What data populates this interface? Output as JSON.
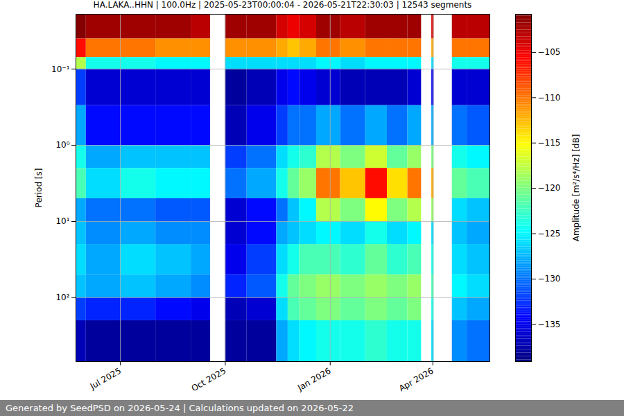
{
  "chart_data": {
    "type": "heatmap",
    "title": "HA.LAKA..HHN | 100.0Hz | 2025-05-23T00:00:04 - 2026-05-21T22:30:03 | 12543 segments",
    "footer": "Generated by SeedPSD on 2026-05-24 | Calculations updated on 2026-05-22",
    "y_label": "Period [s]",
    "colorbar_label": "Amplitude [m²/s⁴/Hz] [dB]",
    "x_bins": [
      "2025-05-23",
      "2025-06-01",
      "2025-07-01",
      "2025-08-01",
      "2025-09-01",
      "2025-09-18",
      "2025-10-01",
      "2025-10-20",
      "2025-11-15",
      "2025-11-25",
      "2025-12-05",
      "2025-12-20",
      "2026-01-10",
      "2026-02-01",
      "2026-02-20",
      "2026-03-10",
      "2026-03-22",
      "2026-03-31",
      "2026-04-02",
      "2026-04-18",
      "2026-05-01",
      "2026-05-21"
    ],
    "y_bins": [
      0.019,
      0.04,
      0.07,
      0.1,
      0.3,
      1,
      2,
      5,
      10,
      20,
      50,
      100,
      200,
      690
    ],
    "values": [
      [
        -101,
        -106,
        -118,
        -132,
        -128,
        -124,
        -122,
        -128,
        -127,
        -126,
        -127,
        -132,
        -137
      ],
      [
        -102,
        -110,
        -124,
        -136,
        -134,
        -128,
        -126,
        -130,
        -129,
        -128,
        -128,
        -133,
        -138
      ],
      [
        -102,
        -110,
        -124,
        -136,
        -134,
        -127,
        -124,
        -130,
        -128,
        -126,
        -127,
        -133,
        -138
      ],
      [
        -102,
        -111,
        -125,
        -136,
        -134,
        -127,
        -125,
        -131,
        -129,
        -127,
        -128,
        -134,
        -138
      ],
      [
        -103,
        -111,
        -125,
        -136,
        -134,
        -127,
        -125,
        -131,
        -129,
        -128,
        -129,
        -135,
        -138
      ],
      null,
      [
        -102,
        -111,
        -126,
        -138,
        -137,
        -132,
        -130,
        -136,
        -136,
        -135,
        -133,
        -137,
        -138
      ],
      [
        -102,
        -111,
        -126,
        -137,
        -135,
        -130,
        -128,
        -134,
        -134,
        -132,
        -131,
        -136,
        -138
      ],
      [
        -104,
        -112,
        -126,
        -135,
        -132,
        -126,
        -124,
        -130,
        -128,
        -126,
        -124,
        -126,
        -128
      ],
      [
        -105,
        -113,
        -126,
        -134,
        -130,
        -124,
        -121,
        -127,
        -127,
        -124,
        -121,
        -122,
        -126
      ],
      [
        -104,
        -112,
        -126,
        -135,
        -130,
        -123,
        -119,
        -125,
        -126,
        -122,
        -120,
        -121,
        -125
      ],
      [
        -102,
        -110,
        -125,
        -136,
        -128,
        -118,
        -110,
        -118,
        -125,
        -122,
        -119,
        -120,
        -124
      ],
      [
        -103,
        -111,
        -126,
        -137,
        -130,
        -120,
        -113,
        -120,
        -126,
        -123,
        -120,
        -121,
        -124
      ],
      [
        -102,
        -110,
        -125,
        -137,
        -128,
        -117,
        -106,
        -115,
        -124,
        -121,
        -119,
        -120,
        -123
      ],
      [
        -102,
        -110,
        -125,
        -137,
        -130,
        -121,
        -114,
        -120,
        -126,
        -123,
        -120,
        -121,
        -124
      ],
      [
        -102,
        -110,
        -125,
        -136,
        -128,
        -119,
        -110,
        -118,
        -125,
        -122,
        -119,
        -120,
        -124
      ],
      null,
      [
        -104,
        -112,
        -126,
        -135,
        -128,
        -120,
        -112,
        -119,
        -126,
        -124,
        -122,
        -124,
        -126
      ],
      null,
      [
        -103,
        -110,
        -124,
        -136,
        -130,
        -124,
        -121,
        -126,
        -127,
        -126,
        -125,
        -127,
        -129
      ],
      [
        -103,
        -110,
        -124,
        -136,
        -131,
        -125,
        -122,
        -127,
        -128,
        -127,
        -126,
        -128,
        -130
      ]
    ],
    "xlim": [
      "2025-05-23",
      "2026-05-21"
    ],
    "xticks": [
      {
        "value": "2025-07-01",
        "label": "Jul 2025"
      },
      {
        "value": "2025-10-01",
        "label": "Oct 2025"
      },
      {
        "value": "2026-01-01",
        "label": "Jan 2026"
      },
      {
        "value": "2026-04-01",
        "label": "Apr 2026"
      }
    ],
    "ylim": [
      0.019,
      690
    ],
    "yticks": [
      {
        "value": 0.1,
        "label": "10⁻¹"
      },
      {
        "value": 1,
        "label": "10⁰"
      },
      {
        "value": 10,
        "label": "10¹"
      },
      {
        "value": 100,
        "label": "10²"
      }
    ],
    "log": "y",
    "grid": true,
    "colorbar_lim": [
      -139.1,
      -100.8
    ],
    "colorbar_ticks": [
      -135,
      -130,
      -125,
      -120,
      -115,
      -110,
      -105
    ]
  }
}
